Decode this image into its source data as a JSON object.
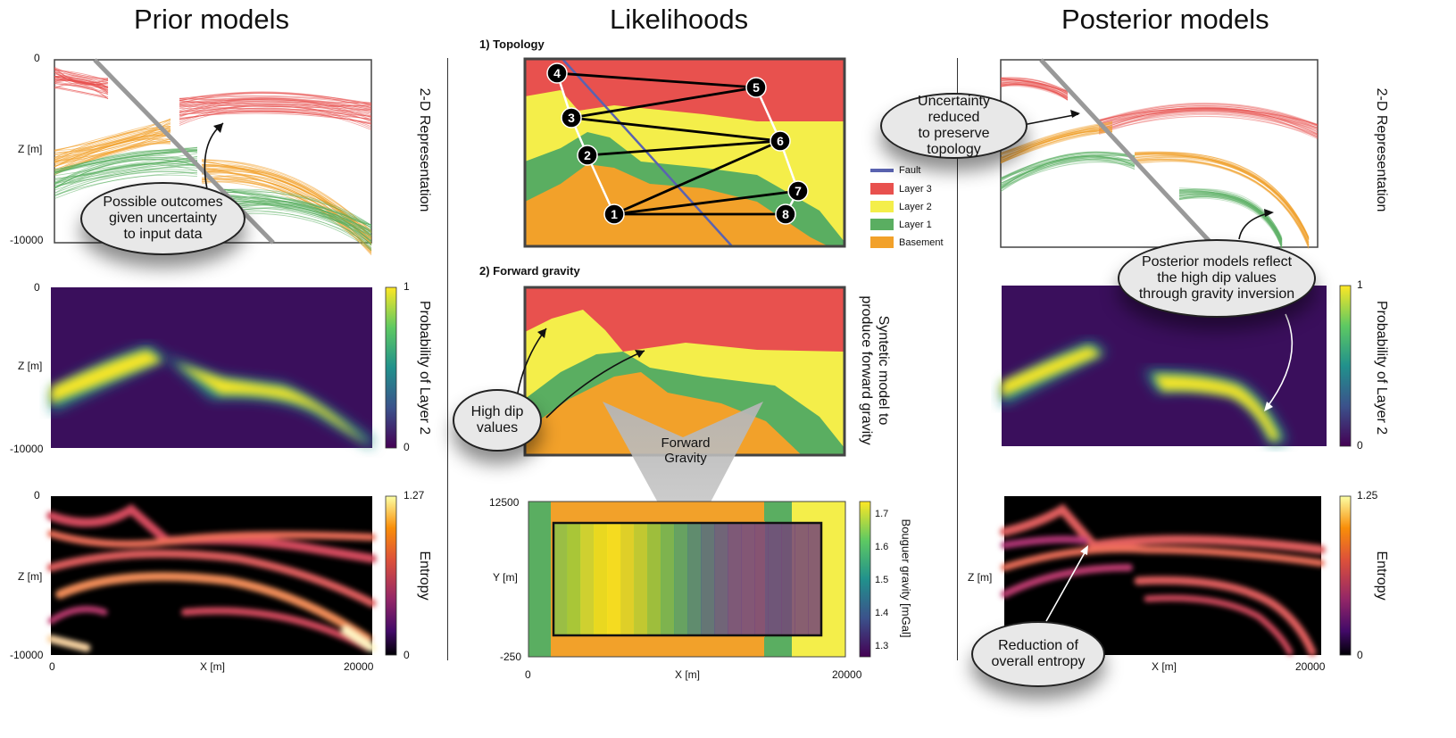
{
  "columns": {
    "prior": "Prior models",
    "likelihood": "Likelihoods",
    "posterior": "Posterior models"
  },
  "axes": {
    "y_top": "0",
    "y_bottom": "-10000",
    "z_label": "Z [m]",
    "x_label": "X [m]",
    "x_min": "0",
    "x_max": "20000",
    "y_label": "Y [m]",
    "y_top_grav": "12500",
    "y_bottom_grav": "-250"
  },
  "row_labels": {
    "representation": "2-D Representation",
    "probability": "Probability of Layer 2",
    "entropy": "Entropy"
  },
  "colorbars": {
    "prob_max": "1",
    "prob_min": "0",
    "prior_entropy_max": "1.27",
    "posterior_entropy_max": "1.25",
    "entropy_min": "0",
    "gravity_label": "Bouguer gravity [mGal]",
    "gravity_ticks": [
      "1.7",
      "1.6",
      "1.5",
      "1.4",
      "1.3"
    ]
  },
  "likelihood": {
    "topology_title": "1) Topology",
    "gravity_title": "2) Forward gravity",
    "side_label_1": "Syntetic model to",
    "side_label_2": "produce forward gravity",
    "forward_label": "Forward\nGravity",
    "nodes": [
      "1",
      "2",
      "3",
      "4",
      "5",
      "6",
      "7",
      "8"
    ]
  },
  "legend": [
    {
      "label": "Fault",
      "color": "#5a63b0"
    },
    {
      "label": "Layer 3",
      "color": "#e8514e"
    },
    {
      "label": "Layer 2",
      "color": "#f4ee4a"
    },
    {
      "label": "Layer 1",
      "color": "#5aae61"
    },
    {
      "label": "Basement",
      "color": "#f2a12a"
    }
  ],
  "callouts": {
    "prior": "Possible outcomes\ngiven uncertainty\nto input data",
    "high_dip": "High dip\nvalues",
    "uncertainty": "Uncertainty reduced\nto preserve topology",
    "posterior": "Posterior models reflect\nthe high dip values\nthrough gravity inversion",
    "entropy": "Reduction of\noverall entropy"
  },
  "colors": {
    "layer3": "#e8514e",
    "layer2": "#f4ee4a",
    "layer1": "#5aae61",
    "basement": "#f2a12a",
    "fault": "#5a63b0"
  }
}
